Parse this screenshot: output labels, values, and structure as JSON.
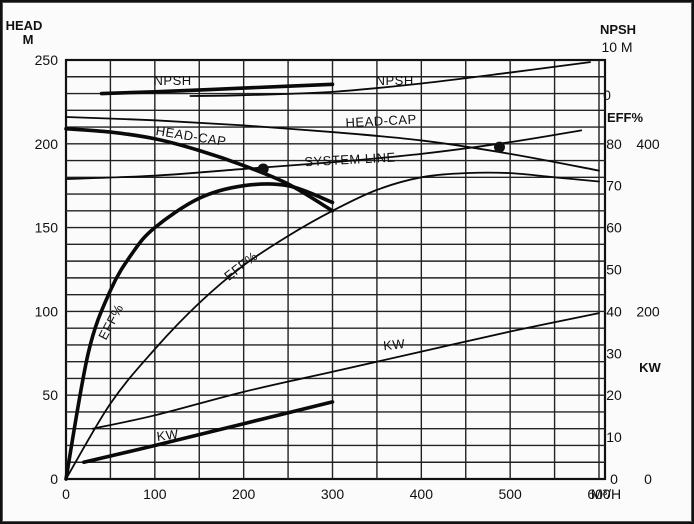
{
  "chart_data": {
    "type": "line",
    "x_axis": {
      "unit_label": "M³/H",
      "ticks": [
        "0",
        "100",
        "200",
        "300",
        "400",
        "500",
        "600"
      ],
      "range": [
        0,
        600
      ]
    },
    "axes_left": [
      {
        "id": "head",
        "title": "HEAD",
        "unit": "M",
        "range": [
          0,
          250
        ],
        "ticks": [
          "0",
          "50",
          "100",
          "150",
          "200",
          "250"
        ]
      }
    ],
    "axes_right": [
      {
        "id": "npsh",
        "title": "NPSH",
        "unit": "10 M",
        "range": [
          0,
          10
        ],
        "ticks": [
          "0"
        ]
      },
      {
        "id": "eff",
        "title": "EFF%",
        "range": [
          0,
          100
        ],
        "ticks": [
          "80",
          "70",
          "60",
          "50",
          "40",
          "30",
          "20",
          "10",
          "0"
        ]
      },
      {
        "id": "kw",
        "title": "KW",
        "range": [
          0,
          500
        ],
        "ticks": [
          "400",
          "200",
          "0"
        ]
      }
    ],
    "grid": true,
    "series": [
      {
        "name": "HEAD-CAP",
        "axis": "head",
        "weight": "heavy",
        "x": [
          0,
          50,
          100,
          150,
          200,
          250,
          300
        ],
        "y": [
          209,
          207,
          203,
          196,
          187,
          176,
          160
        ]
      },
      {
        "name": "HEAD-CAP",
        "axis": "head",
        "weight": "light",
        "x": [
          0,
          100,
          200,
          300,
          400,
          500,
          600
        ],
        "y": [
          216,
          214,
          211,
          207,
          202,
          194,
          184
        ]
      },
      {
        "name": "SYSTEM LINE",
        "axis": "head",
        "weight": "light",
        "x": [
          0,
          100,
          200,
          300,
          400,
          500,
          580
        ],
        "y": [
          179,
          181,
          185,
          189,
          194,
          201,
          208
        ]
      },
      {
        "name": "EFF%",
        "axis": "eff",
        "weight": "heavy",
        "x": [
          0,
          25,
          50,
          75,
          100,
          150,
          200,
          250,
          300
        ],
        "y": [
          0,
          30,
          45,
          54,
          60,
          67,
          70,
          70,
          66
        ]
      },
      {
        "name": "EFF%",
        "axis": "eff",
        "weight": "light",
        "x": [
          0,
          50,
          100,
          150,
          200,
          250,
          300,
          350,
          400,
          450,
          500,
          550,
          600
        ],
        "y": [
          0,
          18,
          31,
          42,
          51,
          58,
          64,
          69,
          72,
          73,
          73,
          72,
          71
        ]
      },
      {
        "name": "NPSH",
        "axis": "npsh",
        "weight": "heavy",
        "x": [
          40,
          100,
          200,
          300
        ],
        "y": [
          9.2,
          9.24,
          9.33,
          9.42
        ]
      },
      {
        "name": "NPSH",
        "axis": "npsh",
        "weight": "light",
        "x": [
          140,
          200,
          300,
          400,
          500,
          590
        ],
        "y": [
          9.14,
          9.16,
          9.24,
          9.44,
          9.7,
          9.95
        ]
      },
      {
        "name": "KW",
        "axis": "kw",
        "weight": "heavy",
        "x": [
          20,
          100,
          200,
          300
        ],
        "y": [
          20,
          40,
          66,
          92
        ]
      },
      {
        "name": "KW",
        "axis": "kw",
        "weight": "light",
        "x": [
          30,
          100,
          200,
          300,
          400,
          500,
          600
        ],
        "y": [
          60,
          76,
          104,
          128,
          152,
          176,
          198
        ]
      }
    ],
    "points": [
      {
        "x": 222,
        "y": 185,
        "axis": "head"
      },
      {
        "x": 488,
        "y": 198,
        "axis": "head"
      }
    ],
    "curve_labels": [
      {
        "text": "NPSH",
        "x": 120,
        "y": 9.4,
        "axis": "npsh",
        "rotate": 0
      },
      {
        "text": "NPSH",
        "x": 370,
        "y": 9.4,
        "axis": "npsh",
        "rotate": 0
      },
      {
        "text": "HEAD-CAP",
        "x": 140,
        "y": 202,
        "axis": "head",
        "rotate": 9
      },
      {
        "text": "HEAD-CAP",
        "x": 355,
        "y": 211,
        "axis": "head",
        "rotate": -3
      },
      {
        "text": "SYSTEM LINE",
        "x": 320,
        "y": 188,
        "axis": "head",
        "rotate": -3
      },
      {
        "text": "EFF%",
        "x": 55,
        "y": 37,
        "axis": "eff",
        "rotate": -62
      },
      {
        "text": "EFF%",
        "x": 200,
        "y": 50,
        "axis": "eff",
        "rotate": -38
      },
      {
        "text": "KW",
        "x": 370,
        "y": 155,
        "axis": "kw",
        "rotate": -6
      },
      {
        "text": "KW",
        "x": 115,
        "y": 47,
        "axis": "kw",
        "rotate": -7
      }
    ]
  }
}
